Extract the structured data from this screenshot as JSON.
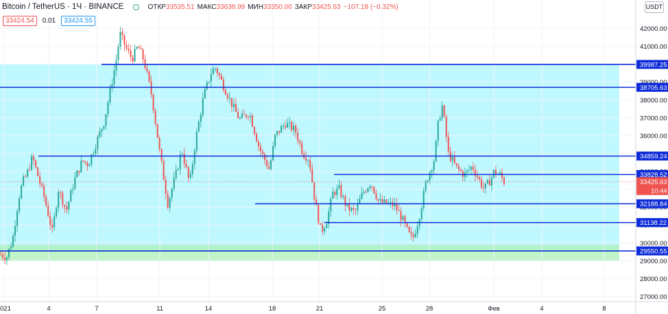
{
  "header": {
    "symbol": "Bitcoin / TetherUS · 1Ч · BINANCE",
    "status_color": "#26a69a",
    "open_label": "ОТКР",
    "open": "33535.51",
    "high_label": "МАКС",
    "high": "33638.99",
    "low_label": "МИН",
    "low": "33350.00",
    "close_label": "ЗАКР",
    "close": "33425.63",
    "change": "−107.18 (−0.32%)"
  },
  "quote": {
    "sell": "33424.54",
    "spread": "0.01",
    "buy": "33424.55"
  },
  "currency_button": "USDT",
  "colors": {
    "up": "#26a69a",
    "down": "#ef5350",
    "line": "#0d2bd8",
    "zone": "#00e5ff",
    "support_zone": "#aef0b8"
  },
  "chart_data": {
    "type": "candlestick",
    "y_ticks": [
      "42000.00",
      "41000.00",
      "40000.00",
      "39000.00",
      "38000.00",
      "37000.00",
      "36000.00",
      "35000.00",
      "34000.00",
      "33000.00",
      "32000.00",
      "31000.00",
      "30000.00",
      "29000.00",
      "28000.00",
      "27000.00"
    ],
    "x_ticks": [
      "021",
      "4",
      "7",
      "11",
      "14",
      "18",
      "21",
      "25",
      "28",
      "Фев",
      "4",
      "8"
    ],
    "ylim": [
      26800,
      42600
    ],
    "horizontal_levels": [
      "39987.25",
      "38705.63",
      "34859.24",
      "33828.52",
      "32188.84",
      "31138.22",
      "29550.55"
    ],
    "last_price": "33425.63",
    "countdown": "10:44",
    "zones": [
      {
        "name": "resistance-range",
        "from": 29550,
        "to": 40000
      },
      {
        "name": "support-range",
        "from": 29000,
        "to": 29900
      }
    ],
    "price_path": [
      [
        0,
        29350
      ],
      [
        3,
        29200
      ],
      [
        6,
        30200
      ],
      [
        9,
        32500
      ],
      [
        11,
        33400
      ],
      [
        13,
        33800
      ],
      [
        16,
        34800
      ],
      [
        18,
        34000
      ],
      [
        22,
        32500
      ],
      [
        26,
        30600
      ],
      [
        29,
        33000
      ],
      [
        33,
        31800
      ],
      [
        37,
        33500
      ],
      [
        41,
        34600
      ],
      [
        44,
        34400
      ],
      [
        48,
        35600
      ],
      [
        52,
        36800
      ],
      [
        55,
        38500
      ],
      [
        58,
        40200
      ],
      [
        60,
        41700
      ],
      [
        63,
        40900
      ],
      [
        66,
        40300
      ],
      [
        69,
        41000
      ],
      [
        72,
        40200
      ],
      [
        76,
        38200
      ],
      [
        80,
        35000
      ],
      [
        84,
        32200
      ],
      [
        88,
        33800
      ],
      [
        91,
        35200
      ],
      [
        95,
        33300
      ],
      [
        98,
        35800
      ],
      [
        102,
        38200
      ],
      [
        106,
        39600
      ],
      [
        108,
        39800
      ],
      [
        112,
        38800
      ],
      [
        116,
        37800
      ],
      [
        120,
        36900
      ],
      [
        125,
        37300
      ],
      [
        130,
        35300
      ],
      [
        135,
        34100
      ],
      [
        138,
        36000
      ],
      [
        143,
        36700
      ],
      [
        148,
        36300
      ],
      [
        152,
        35000
      ],
      [
        155,
        34700
      ],
      [
        158,
        32300
      ],
      [
        161,
        30600
      ],
      [
        164,
        31300
      ],
      [
        167,
        32800
      ],
      [
        170,
        33000
      ],
      [
        174,
        32000
      ],
      [
        178,
        31700
      ],
      [
        182,
        32800
      ],
      [
        186,
        33400
      ],
      [
        190,
        32300
      ],
      [
        194,
        32200
      ],
      [
        198,
        32100
      ],
      [
        202,
        31300
      ],
      [
        205,
        30500
      ],
      [
        207,
        30200
      ],
      [
        210,
        31300
      ],
      [
        214,
        33500
      ],
      [
        218,
        34700
      ],
      [
        220,
        36800
      ],
      [
        222,
        37700
      ],
      [
        225,
        35000
      ],
      [
        229,
        34200
      ],
      [
        233,
        33800
      ],
      [
        237,
        34300
      ],
      [
        241,
        33400
      ],
      [
        243,
        33000
      ],
      [
        246,
        33500
      ],
      [
        248,
        34000
      ],
      [
        251,
        33800
      ],
      [
        253,
        33426
      ]
    ]
  }
}
